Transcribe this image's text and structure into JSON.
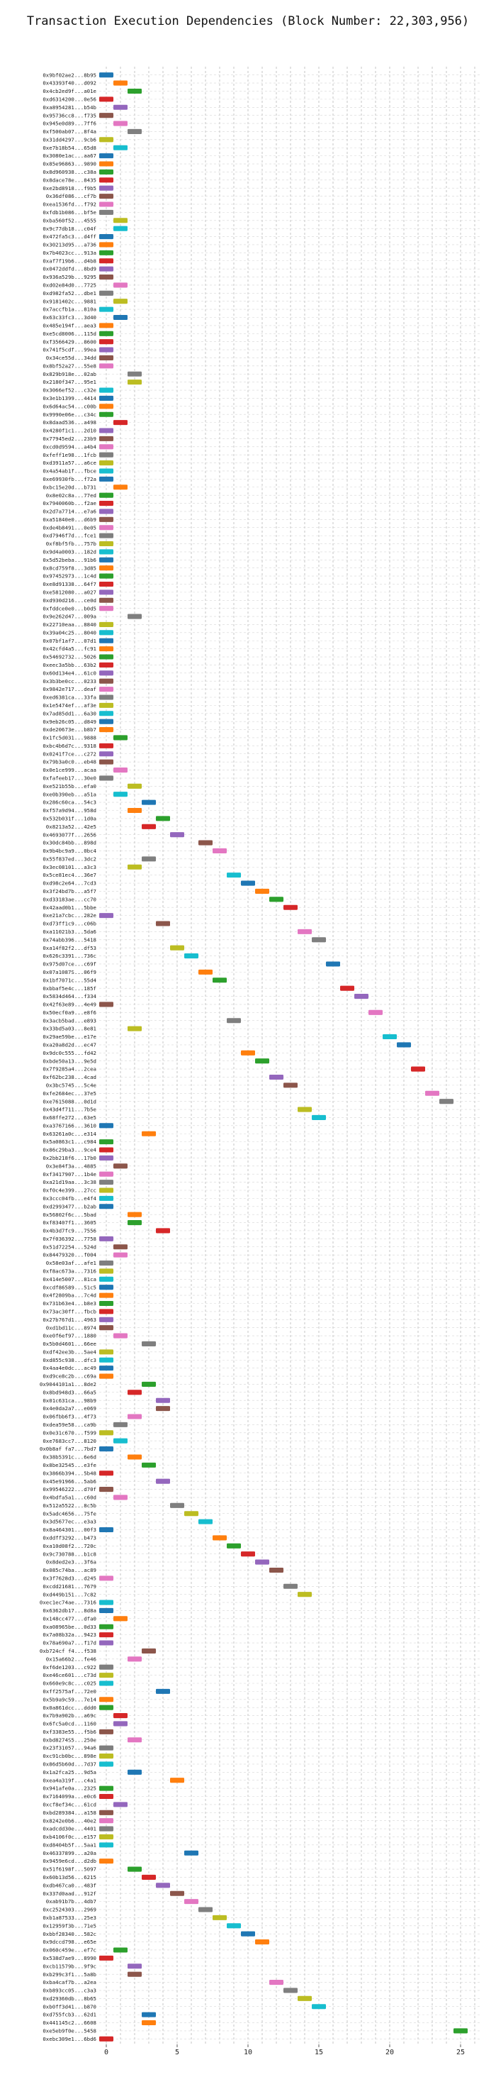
{
  "chart_data": {
    "type": "gantt",
    "title": "Transaction Execution Dependencies (Block Number: 22,303,956)",
    "xlabel": "",
    "ylabel": "",
    "xlim": [
      -0.5,
      26.5
    ],
    "xticks": [
      0,
      5,
      10,
      15,
      20,
      25
    ],
    "grid": true,
    "colors": [
      "#1f77b4",
      "#ff7f0e",
      "#2ca02c",
      "#d62728",
      "#9467bd",
      "#8c564b",
      "#e377c2",
      "#7f7f7f",
      "#bcbd22",
      "#17becf"
    ],
    "tasks": [
      {
        "tx": "0x9bf02ae2...8b95",
        "start": 0
      },
      {
        "tx": "0x43393f40...d092",
        "start": 1
      },
      {
        "tx": "0x4cb2ed9f...a01e",
        "start": 2
      },
      {
        "tx": "0xd6314200...0e56",
        "start": 0
      },
      {
        "tx": "0xa8954281...b54b",
        "start": 1
      },
      {
        "tx": "0x95736cc8...f735",
        "start": 0
      },
      {
        "tx": "0x945e0d89...7ff6",
        "start": 1
      },
      {
        "tx": "0xf500ab07...8f4a",
        "start": 2
      },
      {
        "tx": "0x31dd4297...9cb6",
        "start": 0
      },
      {
        "tx": "0xe7b18b54...65d8",
        "start": 1
      },
      {
        "tx": "0x3080e1ac...aa67",
        "start": 0
      },
      {
        "tx": "0x85e96863...9890",
        "start": 0
      },
      {
        "tx": "0x8d960938...c38a",
        "start": 0
      },
      {
        "tx": "0x8dace78e...8435",
        "start": 0
      },
      {
        "tx": "0xe2bd8918...f9b5",
        "start": 0
      },
      {
        "tx": "0x36df086...cf7b",
        "start": 0
      },
      {
        "tx": "0xea1536fd...f792",
        "start": 0
      },
      {
        "tx": "0xfdb1b086...bf5e",
        "start": 0
      },
      {
        "tx": "0xba560f52...4555",
        "start": 1
      },
      {
        "tx": "0x9c77db18...c04f",
        "start": 1
      },
      {
        "tx": "0x472fa5c3...d4ff",
        "start": 0
      },
      {
        "tx": "0x30213d95...a736",
        "start": 0
      },
      {
        "tx": "0x7b4023cc...913a",
        "start": 0
      },
      {
        "tx": "0xaf7f19b6...d4b8",
        "start": 0
      },
      {
        "tx": "0x0472ddfd...8bd9",
        "start": 0
      },
      {
        "tx": "0x936a529b...9295",
        "start": 0
      },
      {
        "tx": "0xd02e84d0...7725",
        "start": 1
      },
      {
        "tx": "0xd982fa52...dbe1",
        "start": 0
      },
      {
        "tx": "0x9181402c...9881",
        "start": 1
      },
      {
        "tx": "0x7accfb1a...810a",
        "start": 0
      },
      {
        "tx": "0x63c33fc3...3d40",
        "start": 1
      },
      {
        "tx": "0x485e194f...aea3",
        "start": 0
      },
      {
        "tx": "0xe5cd8006...115d",
        "start": 0
      },
      {
        "tx": "0xf3566429...8600",
        "start": 0
      },
      {
        "tx": "0x741f5cdf...99ea",
        "start": 0
      },
      {
        "tx": "0x34ce55d...34dd",
        "start": 0
      },
      {
        "tx": "0x8bf52a27...55e8",
        "start": 0
      },
      {
        "tx": "0x829b918e...02ab",
        "start": 2
      },
      {
        "tx": "0x2180f347...95e1",
        "start": 2
      },
      {
        "tx": "0x3066ef52...c32e",
        "start": 0
      },
      {
        "tx": "0x3e1b1399...4414",
        "start": 0
      },
      {
        "tx": "0x6d64ac54...c00b",
        "start": 0
      },
      {
        "tx": "0x9990e06e...c34c",
        "start": 0
      },
      {
        "tx": "0x8daad536...a498",
        "start": 1
      },
      {
        "tx": "0x4280f1c1...2d10",
        "start": 0
      },
      {
        "tx": "0x77945ed2...23b9",
        "start": 0
      },
      {
        "tx": "0xcd0d9594...a4b4",
        "start": 0
      },
      {
        "tx": "0xfeff1e98...1fcb",
        "start": 0
      },
      {
        "tx": "0xd3911a57...a6ce",
        "start": 0
      },
      {
        "tx": "0x4a54ab1f...fbce",
        "start": 0
      },
      {
        "tx": "0xe69930fb...f72a",
        "start": 0
      },
      {
        "tx": "0xbc15e20d...b731",
        "start": 1
      },
      {
        "tx": "0x8e02c8a...77ed",
        "start": 0
      },
      {
        "tx": "0x7940060b...f2ae",
        "start": 0
      },
      {
        "tx": "0x2d7a7714...e7a6",
        "start": 0
      },
      {
        "tx": "0xa51840e0...d6b9",
        "start": 0
      },
      {
        "tx": "0xde4b8491...0e05",
        "start": 0
      },
      {
        "tx": "0xd7946f7d...fce1",
        "start": 0
      },
      {
        "tx": "0xf8bf5fb...757b",
        "start": 0
      },
      {
        "tx": "0x9d4a0003...182d",
        "start": 0
      },
      {
        "tx": "0x5d52beba...91b6",
        "start": 0
      },
      {
        "tx": "0x8cd759f8...3d85",
        "start": 0
      },
      {
        "tx": "0x97452973...1c4d",
        "start": 0
      },
      {
        "tx": "0xe8d91338...64f7",
        "start": 0
      },
      {
        "tx": "0xe5812080...a027",
        "start": 0
      },
      {
        "tx": "0xd930d216...ce0d",
        "start": 0
      },
      {
        "tx": "0xfddce0e0...b0d5",
        "start": 0
      },
      {
        "tx": "0x9e262d47...009a",
        "start": 2
      },
      {
        "tx": "0x22710eaa...8840",
        "start": 0
      },
      {
        "tx": "0x39a04c25...8040",
        "start": 0
      },
      {
        "tx": "0x07bf1af7...07d1",
        "start": 0
      },
      {
        "tx": "0x42cfd4a5...fc91",
        "start": 0
      },
      {
        "tx": "0x54692732...5026",
        "start": 0
      },
      {
        "tx": "0xeec3a5bb...63b2",
        "start": 0
      },
      {
        "tx": "0x60d134e4...61c0",
        "start": 0
      },
      {
        "tx": "0x3b3be0cc...0233",
        "start": 0
      },
      {
        "tx": "0x9842e717...deaf",
        "start": 0
      },
      {
        "tx": "0xed6381ca...33fa",
        "start": 0
      },
      {
        "tx": "0x1e5474ef...af3e",
        "start": 0
      },
      {
        "tx": "0x7ad85dd1...6a30",
        "start": 0
      },
      {
        "tx": "0x9eb26c05...d849",
        "start": 0
      },
      {
        "tx": "0xde20673e...b8b7",
        "start": 0
      },
      {
        "tx": "0x1fc5d031...9888",
        "start": 1
      },
      {
        "tx": "0xbc4b6d7c...9318",
        "start": 0
      },
      {
        "tx": "0x0241f7ce...c272",
        "start": 0
      },
      {
        "tx": "0x79b3a0c0...eb48",
        "start": 0
      },
      {
        "tx": "0x0e1ce999...acaa",
        "start": 1
      },
      {
        "tx": "0xfafeeb17...30e0",
        "start": 0
      },
      {
        "tx": "0xe521b55b...efa0",
        "start": 2
      },
      {
        "tx": "0xe0b390eb...a51a",
        "start": 1
      },
      {
        "tx": "0x286c60ca...54c3",
        "start": 3
      },
      {
        "tx": "0xf57a9d94...958d",
        "start": 2
      },
      {
        "tx": "0x532b031f...1d0a",
        "start": 4
      },
      {
        "tx": "0x8213a52...42e5",
        "start": 3
      },
      {
        "tx": "0x4693077f...2656",
        "start": 5
      },
      {
        "tx": "0x30dc84bb...898d",
        "start": 7
      },
      {
        "tx": "0x9b4bc9a9...0bc4",
        "start": 8
      },
      {
        "tx": "0x55f837ed...3dc2",
        "start": 3
      },
      {
        "tx": "0x3ec08101...a3c3",
        "start": 2
      },
      {
        "tx": "0x5ce81ec4...36e7",
        "start": 9
      },
      {
        "tx": "0xd98c2e64...7cd3",
        "start": 10
      },
      {
        "tx": "0x3f24bd7b...a5f7",
        "start": 11
      },
      {
        "tx": "0xd33183ae...cc70",
        "start": 12
      },
      {
        "tx": "0x42aad0b1...5bbe",
        "start": 13
      },
      {
        "tx": "0xe21a7cbc...282e",
        "start": 0
      },
      {
        "tx": "0xd73ff1c9...c06b",
        "start": 4
      },
      {
        "tx": "0xa11021b3...5da6",
        "start": 14
      },
      {
        "tx": "0x74abb396...5418",
        "start": 15
      },
      {
        "tx": "0xa14f82f2...df53",
        "start": 5
      },
      {
        "tx": "0x626c3391...736c",
        "start": 6
      },
      {
        "tx": "0x975d07ce...c69f",
        "start": 16
      },
      {
        "tx": "0x07a1087S...06f9",
        "start": 7
      },
      {
        "tx": "0x1bf7071c...55d4",
        "start": 8
      },
      {
        "tx": "0xbbaf5e4c...185f",
        "start": 17
      },
      {
        "tx": "0x5834d464...f334",
        "start": 18
      },
      {
        "tx": "0x42f63e89...4e49",
        "start": 0
      },
      {
        "tx": "0x50ecf0a9...e8f6",
        "start": 19
      },
      {
        "tx": "0x3acb5bad...e893",
        "start": 9
      },
      {
        "tx": "0x33bd5a03...8e81",
        "start": 2
      },
      {
        "tx": "0x29ae59be...e17e",
        "start": 20
      },
      {
        "tx": "0xa20a8d2d...ec47",
        "start": 21
      },
      {
        "tx": "0x9dc0c555...fd42",
        "start": 10
      },
      {
        "tx": "0xbde50a13...9e5d",
        "start": 11
      },
      {
        "tx": "0x7f9285a4...2cea",
        "start": 22
      },
      {
        "tx": "0xf62bc238...4cad",
        "start": 12
      },
      {
        "tx": "0x3bc5745...5c4e",
        "start": 13
      },
      {
        "tx": "0xfe2684ec...37e5",
        "start": 23
      },
      {
        "tx": "0xe7615088...0d1d",
        "start": 24
      },
      {
        "tx": "0x43d4f711...7b5e",
        "start": 14
      },
      {
        "tx": "0x68ffe272...63e5",
        "start": 15
      },
      {
        "tx": "0xa3767166...3610",
        "start": 0
      },
      {
        "tx": "0x63261a0c...e314",
        "start": 3
      },
      {
        "tx": "0x5a0863c1...c984",
        "start": 0
      },
      {
        "tx": "0x86c29ba3...9ce4",
        "start": 0
      },
      {
        "tx": "0x2bb218f6...17b0",
        "start": 0
      },
      {
        "tx": "0x3e84f3a...4885",
        "start": 1
      },
      {
        "tx": "0xf3417907...1b4e",
        "start": 0
      },
      {
        "tx": "0xa21d19aa...3c38",
        "start": 0
      },
      {
        "tx": "0xf0c4e399...27cc",
        "start": 0
      },
      {
        "tx": "0x3ccc04fb...e4f4",
        "start": 0
      },
      {
        "tx": "0xd2993477...b2ab",
        "start": 0
      },
      {
        "tx": "0x56802f6c...5bad",
        "start": 2
      },
      {
        "tx": "0xf83407f1...3605",
        "start": 2
      },
      {
        "tx": "0x4b3d7fc9...7556",
        "start": 4
      },
      {
        "tx": "0x7f036392...7758",
        "start": 0
      },
      {
        "tx": "0x51d72254...524d",
        "start": 1
      },
      {
        "tx": "0x84479320...f004",
        "start": 1
      },
      {
        "tx": "0x58e03af...afe1",
        "start": 0
      },
      {
        "tx": "0xf8ac673a...7316",
        "start": 0
      },
      {
        "tx": "0x414e5007...81ca",
        "start": 0
      },
      {
        "tx": "0xcdf86589...51c5",
        "start": 0
      },
      {
        "tx": "0x4f2809ba...7c4d",
        "start": 0
      },
      {
        "tx": "0x731b63e4...b8e3",
        "start": 0
      },
      {
        "tx": "0x73ac30ff...fbcb",
        "start": 0
      },
      {
        "tx": "0x27b767d1...4963",
        "start": 0
      },
      {
        "tx": "0xd1bd11c...8974",
        "start": 0
      },
      {
        "tx": "0xe0f6ef97...1880",
        "start": 1
      },
      {
        "tx": "0x5b0d4601...66ee",
        "start": 3
      },
      {
        "tx": "0xdf42ee3b...5ae4",
        "start": 0
      },
      {
        "tx": "0xd855c938...dfc3",
        "start": 0
      },
      {
        "tx": "0x4aa4e0dc...ac49",
        "start": 0
      },
      {
        "tx": "0xd9ce8c2b...c69a",
        "start": 0
      },
      {
        "tx": "0x9044101a1...8de2",
        "start": 3
      },
      {
        "tx": "0x8bd948d3...66a5",
        "start": 2
      },
      {
        "tx": "0x01c631ca...98b9",
        "start": 4
      },
      {
        "tx": "0x4e0da2a7...e069",
        "start": 4
      },
      {
        "tx": "0x06fbb6f3...4f73",
        "start": 2
      },
      {
        "tx": "0xdea59e58...ca9b",
        "start": 1
      },
      {
        "tx": "0x0e31c670...f599",
        "start": 0
      },
      {
        "tx": "0xe7683cc7...8120",
        "start": 1
      },
      {
        "tx": "0x0b8af fa7...7bd7",
        "start": 0
      },
      {
        "tx": "0x38b5391c...6e6d",
        "start": 2
      },
      {
        "tx": "0x8be32545...e3fe",
        "start": 3
      },
      {
        "tx": "0x3866b394...5b48",
        "start": 0
      },
      {
        "tx": "0x45e91966...5ab6",
        "start": 4
      },
      {
        "tx": "0x99546222...d70f",
        "start": 0
      },
      {
        "tx": "0x4bdfa5a1...c60d",
        "start": 1
      },
      {
        "tx": "0x512a5522...8c5b",
        "start": 5
      },
      {
        "tx": "0x5adc4656...75fe",
        "start": 6
      },
      {
        "tx": "0x3d5677ec...e3a3",
        "start": 7
      },
      {
        "tx": "0x8a464301...00f3",
        "start": 0
      },
      {
        "tx": "0xddff3292...b473",
        "start": 8
      },
      {
        "tx": "0xa10d08f2...720c",
        "start": 9
      },
      {
        "tx": "0x9c730788...b1c8",
        "start": 10
      },
      {
        "tx": "0x8ded2e3...3f6a",
        "start": 11
      },
      {
        "tx": "0x085c74ba...ac89",
        "start": 12
      },
      {
        "tx": "0x3f7628d3...d245",
        "start": 0
      },
      {
        "tx": "0xcdd21681...7679",
        "start": 13
      },
      {
        "tx": "0xd449b151...7c82",
        "start": 14
      },
      {
        "tx": "0xec1ec74ae...7316",
        "start": 0
      },
      {
        "tx": "0x6362db17...8d8a",
        "start": 0
      },
      {
        "tx": "0x148cc477...dfa0",
        "start": 1
      },
      {
        "tx": "0xa08965be...0d33",
        "start": 0
      },
      {
        "tx": "0x7a08b32a...9423",
        "start": 0
      },
      {
        "tx": "0x78a690a7...f17d",
        "start": 0
      },
      {
        "tx": "0xb724cf f4...f538",
        "start": 3
      },
      {
        "tx": "0x15a66b2...fe46",
        "start": 2
      },
      {
        "tx": "0xf6de1203...c922",
        "start": 0
      },
      {
        "tx": "0xe46ce601...c73d",
        "start": 0
      },
      {
        "tx": "0x660e9c8c...c025",
        "start": 0
      },
      {
        "tx": "0xff2575af...72e0",
        "start": 4
      },
      {
        "tx": "0x5b9a9c59...7e14",
        "start": 0
      },
      {
        "tx": "0x0a861dcc...ddd0",
        "start": 0
      },
      {
        "tx": "0x7b9a902b...a69c",
        "start": 1
      },
      {
        "tx": "0x6fc5a0cd...1160",
        "start": 1
      },
      {
        "tx": "0xf3383e55...f5b6",
        "start": 0
      },
      {
        "tx": "0xbd8274S5...250e",
        "start": 2
      },
      {
        "tx": "0x23f31057...94a6",
        "start": 0
      },
      {
        "tx": "0xc91cb0bc...898e",
        "start": 0
      },
      {
        "tx": "0x86d5b60d...7d37",
        "start": 0
      },
      {
        "tx": "0x1a2fca25...9d5a",
        "start": 2
      },
      {
        "tx": "0xea4a319f...c4a1",
        "start": 5
      },
      {
        "tx": "0x941afe0a...2325",
        "start": 0
      },
      {
        "tx": "0x7164099a...e0c6",
        "start": 0
      },
      {
        "tx": "0xcf8ef34c...61cd",
        "start": 1
      },
      {
        "tx": "0xbd289384...a158",
        "start": 0
      },
      {
        "tx": "0x8242e0b6...40e2",
        "start": 0
      },
      {
        "tx": "0xadcdd30e...4401",
        "start": 0
      },
      {
        "tx": "0xb4106f0c...e157",
        "start": 0
      },
      {
        "tx": "0xd8404b5f...5aa1",
        "start": 0
      },
      {
        "tx": "0x46337899...a20a",
        "start": 6
      },
      {
        "tx": "0x9459e6cd...d2db",
        "start": 0
      },
      {
        "tx": "0x51f6198f...5097",
        "start": 2
      },
      {
        "tx": "0x60b13d56...6215",
        "start": 3
      },
      {
        "tx": "0xdb467ca0...483f",
        "start": 4
      },
      {
        "tx": "0x337d0aad...912f",
        "start": 5
      },
      {
        "tx": "0xab91b7b...4db7",
        "start": 6
      },
      {
        "tx": "0xc2524303...2969",
        "start": 7
      },
      {
        "tx": "0xb1a87533...25e3",
        "start": 8
      },
      {
        "tx": "0x12959f3b...71e5",
        "start": 9
      },
      {
        "tx": "0xbbf28340...582c",
        "start": 10
      },
      {
        "tx": "0x9dccd798...e65e",
        "start": 11
      },
      {
        "tx": "0x060c459e...ef7c",
        "start": 1
      },
      {
        "tx": "0x538d7ae9...8990",
        "start": 0
      },
      {
        "tx": "0xcb11579b...9f9c",
        "start": 2
      },
      {
        "tx": "0xb299c3f1...5a8b",
        "start": 2
      },
      {
        "tx": "0xba4caf7b...a2ea",
        "start": 12
      },
      {
        "tx": "0xb893cc05...c3a3",
        "start": 13
      },
      {
        "tx": "0xd29360db...8b65",
        "start": 14
      },
      {
        "tx": "0xb0ff3d41...b870",
        "start": 15
      },
      {
        "tx": "0xd755fcb3...62d1",
        "start": 3
      },
      {
        "tx": "0x441145c2...6608",
        "start": 3
      },
      {
        "tx": "0xe5eb9f0e...5458",
        "start": 25
      },
      {
        "tx": "0xebc309e1...6bd6",
        "start": 0
      }
    ]
  }
}
